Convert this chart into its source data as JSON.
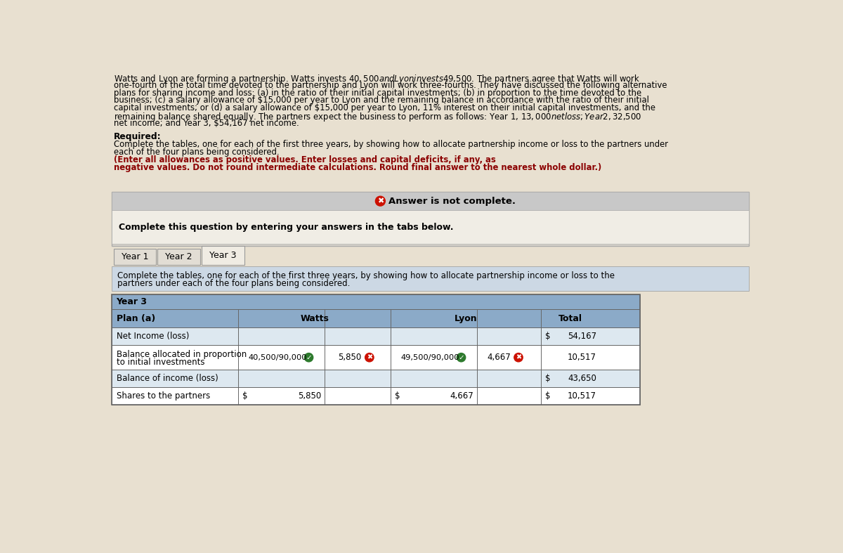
{
  "background_color": "#e8e0d0",
  "intro_line1": "Watts and Lyon are forming a partnership. Watts invests $40,500 and Lyon invests $49,500. The partners agree that Watts will work",
  "intro_line2": "one-fourth of the total time devoted to the partnership and Lyon will work three-fourths. They have discussed the following alternative",
  "intro_line3": "plans for sharing income and loss: (a) in the ratio of their initial capital investments; (b) in proportion to the time devoted to the",
  "intro_line4": "business; (c) a salary allowance of $15,000 per year to Lyon and the remaining balance in accordance with the ratio of their initial",
  "intro_line5": "capital investments; or (d) a salary allowance of $15,000 per year to Lyon, 11% interest on their initial capital investments, and the",
  "intro_line6": "remaining balance shared equally. The partners expect the business to perform as follows: Year 1, $13,000 net loss; Year 2, $32,500",
  "intro_line7": "net income; and Year 3, $54,167 net income.",
  "required_label": "Required:",
  "req_line1": "Complete the tables, one for each of the first three years, by showing how to allocate partnership income or loss to the partners under",
  "req_line2": "each of the four plans being considered.",
  "bold_line1": "(Enter all allowances as positive values. Enter losses and capital deficits, if any, as",
  "bold_line2": "negative values. Do not round intermediate calculations. Round final answer to the nearest whole dollar.)",
  "answer_banner_bg": "#c8c8c8",
  "answer_banner_text": "Answer is not complete.",
  "complete_question_bg": "#f0ede5",
  "complete_question_text": "Complete this question by entering your answers in the tabs below.",
  "tab_labels": [
    "Year 1",
    "Year 2",
    "Year 3"
  ],
  "active_tab": 2,
  "instruction_bg": "#ccd8e4",
  "instr_line1": "Complete the tables, one for each of the first three years, by showing how to allocate partnership income or loss to the",
  "instr_line2": "partners under each of the four plans being considered.",
  "table_header_bg": "#8baac8",
  "table_alt_bg": "#dde8f0",
  "table_white_bg": "#ffffff",
  "table_border": "#666666",
  "year3_label": "Year 3",
  "plan_label": "Plan (a)",
  "watts_header": "Watts",
  "lyon_header": "Lyon",
  "total_header": "Total",
  "row1_label": "Net Income (loss)",
  "row1_total": "54,167",
  "row2_label1": "Balance allocated in proportion",
  "row2_label2": "to initial investments",
  "row2_watts_formula": "40,500/90,000",
  "row2_watts_val": "5,850",
  "row2_lyon_formula": "49,500/90,000",
  "row2_lyon_val": "4,667",
  "row2_total": "10,517",
  "row3_label": "Balance of income (loss)",
  "row3_total": "43,650",
  "row4_label": "Shares to the partners",
  "row4_watts": "5,850",
  "row4_lyon": "4,667",
  "row4_total": "10,517"
}
